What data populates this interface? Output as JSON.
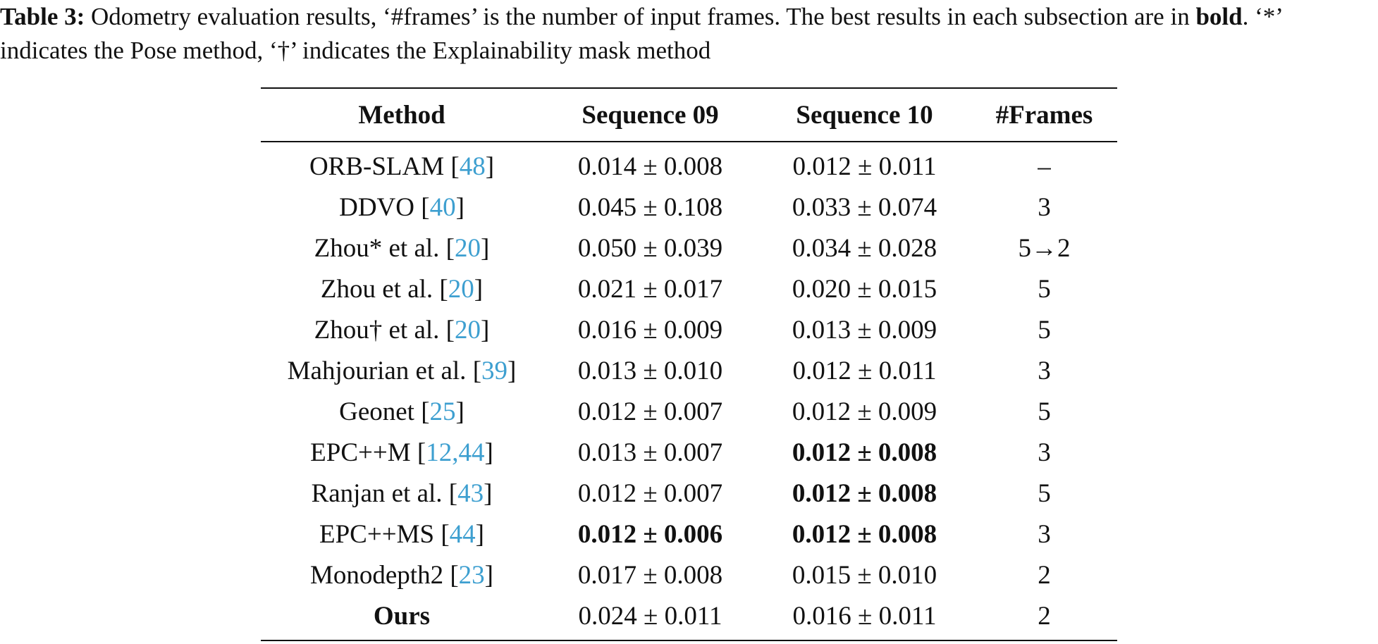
{
  "caption": {
    "label": "Table 3:",
    "text_1": " Odometry evaluation results, ‘#frames’ is the number of input frames. The best results in each subsection are in ",
    "bold_word": "bold",
    "text_2": ". ‘*’ indicates the Pose method, ‘†’ indicates the Explainability mask method"
  },
  "table": {
    "headers": [
      "Method",
      "Sequence 09",
      "Sequence 10",
      "#Frames"
    ],
    "rows": [
      {
        "method": "ORB-SLAM",
        "cite": "48",
        "seq09": "0.014 ± 0.008",
        "seq10": "0.012 ± 0.011",
        "frames": "–"
      },
      {
        "method": "DDVO",
        "cite": "40",
        "seq09": "0.045 ± 0.108",
        "seq10": "0.033 ± 0.074",
        "frames": "3"
      },
      {
        "method": "Zhou* et al.",
        "cite": "20",
        "seq09": "0.050 ± 0.039",
        "seq10": "0.034 ± 0.028",
        "frames": "5→2"
      },
      {
        "method": "Zhou et al.",
        "cite": "20",
        "seq09": "0.021 ± 0.017",
        "seq10": "0.020 ± 0.015",
        "frames": "5"
      },
      {
        "method": "Zhou† et al.",
        "cite": "20",
        "seq09": "0.016 ± 0.009",
        "seq10": "0.013 ± 0.009",
        "frames": "5"
      },
      {
        "method": "Mahjourian et al.",
        "cite": "39",
        "seq09": "0.013 ± 0.010",
        "seq10": "0.012 ± 0.011",
        "frames": "3"
      },
      {
        "method": "Geonet",
        "cite": "25",
        "seq09": "0.012 ± 0.007",
        "seq10": "0.012 ± 0.009",
        "frames": "5"
      },
      {
        "method": "EPC++M",
        "cite": "12,44",
        "seq09": "0.013 ± 0.007",
        "seq10": "0.012 ± 0.008",
        "frames": "3"
      },
      {
        "method": "Ranjan et al.",
        "cite": "43",
        "seq09": "0.012 ± 0.007",
        "seq10": "0.012 ± 0.008",
        "frames": "5"
      },
      {
        "method": "EPC++MS",
        "cite": "44",
        "seq09": "0.012 ± 0.006",
        "seq10": "0.012 ± 0.008",
        "frames": "3"
      },
      {
        "method": "Monodepth2",
        "cite": "23",
        "seq09": "0.017 ± 0.008",
        "seq10": "0.015 ± 0.010",
        "frames": "2"
      },
      {
        "method": "Ours",
        "cite": "",
        "seq09": "0.024 ± 0.011",
        "seq10": "0.016 ± 0.011",
        "frames": "2"
      }
    ]
  },
  "colors": {
    "citation": "#3d9fd0",
    "text": "#111111"
  }
}
